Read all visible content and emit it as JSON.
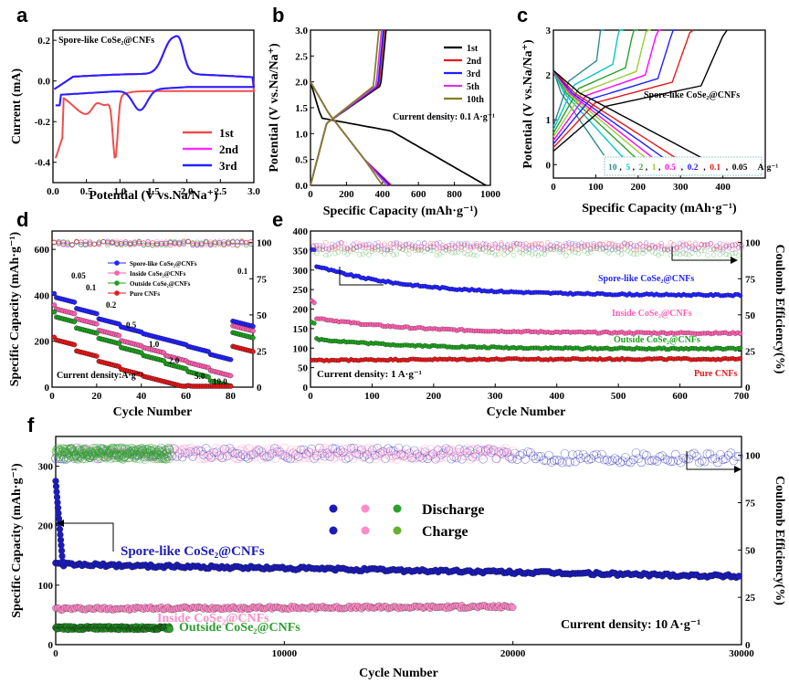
{
  "chart_data": [
    {
      "id": "a",
      "type": "line",
      "panel_label": "a",
      "title": "Spore-like CoSe₂@CNFs",
      "xlabel": "Potential (V vs.Na/Na⁺)",
      "ylabel": "Current (mA)",
      "xlim": [
        0.0,
        3.0
      ],
      "ylim": [
        -0.5,
        0.25
      ],
      "xticks": [
        "0.0",
        "0.5",
        "1.0",
        "1.5",
        "2.0",
        "2.5",
        "3.0"
      ],
      "yticks": [
        "0.2",
        "0.0",
        "-0.2",
        "-0.4"
      ],
      "legend_position": "lower-right",
      "series": [
        {
          "name": "1st",
          "color": "#ef4d4d"
        },
        {
          "name": "2nd",
          "color": "#ff2cff"
        },
        {
          "name": "3rd",
          "color": "#2323ff"
        }
      ]
    },
    {
      "id": "b",
      "type": "line",
      "panel_label": "b",
      "xlabel": "Specific Capacity (mAh·g⁻¹)",
      "ylabel": "Potential (V vs.Na/Na⁺)",
      "xlim": [
        0,
        1000
      ],
      "ylim": [
        0.0,
        3.0
      ],
      "xticks": [
        "0",
        "200",
        "400",
        "600",
        "800",
        "1000"
      ],
      "yticks": [
        "0.0",
        "0.5",
        "1.0",
        "1.5",
        "2.0",
        "2.5",
        "3.0"
      ],
      "annotation": "Current density: 0.1 A·g⁻¹",
      "legend_position": "top-right",
      "series": [
        {
          "name": "1st",
          "color": "#000000",
          "discharge_end": 975,
          "charge_end": 420
        },
        {
          "name": "2nd",
          "color": "#e31a1c",
          "discharge_end": 450,
          "charge_end": 410
        },
        {
          "name": "3rd",
          "color": "#1f1fff",
          "discharge_end": 440,
          "charge_end": 405
        },
        {
          "name": "5th",
          "color": "#d63ad6",
          "discharge_end": 425,
          "charge_end": 395
        },
        {
          "name": "10th",
          "color": "#808020",
          "discharge_end": 400,
          "charge_end": 380
        }
      ]
    },
    {
      "id": "c",
      "type": "line",
      "panel_label": "c",
      "xlabel": "Specific Capacity (mAh·g⁻¹)",
      "ylabel": "Potential (V vs.Na/Na⁺)",
      "xlim": [
        0,
        500
      ],
      "ylim": [
        -0.3,
        3.0
      ],
      "xticks": [
        "0",
        "100",
        "200",
        "300",
        "400"
      ],
      "yticks": [
        "0",
        "1",
        "2",
        "3"
      ],
      "annotation": "Spore-like CoSe₂@CNFs",
      "rates_label_unit": "A·g⁻¹",
      "series": [
        {
          "name": "10",
          "color": "#2e8b8b",
          "capacity": 120
        },
        {
          "name": "5",
          "color": "#00c8c8",
          "capacity": 165
        },
        {
          "name": "2",
          "color": "#2ca02c",
          "capacity": 200
        },
        {
          "name": "1",
          "color": "#9acd32",
          "capacity": 230
        },
        {
          "name": "0.5",
          "color": "#ff00ff",
          "capacity": 255
        },
        {
          "name": "0.2",
          "color": "#1f1fff",
          "capacity": 290
        },
        {
          "name": "0.1",
          "color": "#e31a1c",
          "capacity": 330
        },
        {
          "name": "0.05",
          "color": "#000000",
          "capacity": 410
        }
      ]
    },
    {
      "id": "d",
      "type": "scatter",
      "panel_label": "d",
      "xlabel": "Cycle Number",
      "ylabel": "Specific Capacity (mAh·g⁻¹)",
      "y2label": "",
      "xlim": [
        0,
        90
      ],
      "ylim": [
        0,
        680
      ],
      "y2lim": [
        0,
        108
      ],
      "xticks": [
        "0",
        "20",
        "40",
        "60",
        "80"
      ],
      "yticks": [
        "0",
        "200",
        "400",
        "600"
      ],
      "y2ticks": [
        "0",
        "25",
        "50",
        "75",
        "100"
      ],
      "annotation": "Current density:A·g⁻¹",
      "rate_labels": [
        "0.05",
        "0.1",
        "0.2",
        "0.5",
        "1.0",
        "2.0",
        "5.0",
        "10.0",
        "0.1"
      ],
      "segments": [
        0,
        10,
        20,
        30,
        40,
        50,
        60,
        70,
        80,
        90
      ],
      "series": [
        {
          "name": "Spore-like CoSe₂@CNFs",
          "color": "#2323ff",
          "levels": [
            395,
            345,
            300,
            265,
            235,
            210,
            180,
            145,
            290
          ],
          "first": 410
        },
        {
          "name": "Inside CoSe₂@CNFs",
          "color": "#ff5fb0",
          "levels": [
            345,
            300,
            250,
            205,
            175,
            140,
            110,
            75,
            270
          ],
          "first": 360
        },
        {
          "name": "Outside CoSe₂@CNFs",
          "color": "#1fa01f",
          "levels": [
            310,
            260,
            215,
            175,
            140,
            105,
            70,
            30,
            240
          ],
          "first": 330
        },
        {
          "name": "Pure CNFs",
          "color": "#e31a1c",
          "levels": [
            210,
            160,
            115,
            80,
            50,
            25,
            10,
            5,
            180
          ],
          "first": 220
        }
      ]
    },
    {
      "id": "e",
      "type": "scatter",
      "panel_label": "e",
      "xlabel": "Cycle Number",
      "ylabel": "",
      "y2label": "Coulomb Efficiency(%)",
      "xlim": [
        0,
        700
      ],
      "ylim": [
        0,
        400
      ],
      "y2lim": [
        0,
        108
      ],
      "xticks": [
        "0",
        "100",
        "200",
        "300",
        "400",
        "500",
        "600",
        "700"
      ],
      "yticks": [
        "0",
        "50",
        "100",
        "150",
        "200",
        "250",
        "300",
        "350",
        "400"
      ],
      "y2ticks": [
        "0",
        "25",
        "50",
        "75",
        "100"
      ],
      "annotation": "Current density: 1 A·g⁻¹",
      "series": [
        {
          "name": "Spore-like CoSe₂@CNFs",
          "color": "#2323ff",
          "start": 315,
          "end": 235
        },
        {
          "name": "Inside CoSe₂@CNFs",
          "color": "#ff5fb0",
          "start": 180,
          "end": 138
        },
        {
          "name": "Outside CoSe₂@CNFs",
          "color": "#1fa01f",
          "start": 125,
          "end": 98
        },
        {
          "name": "Pure CNFs",
          "color": "#e31a1c",
          "start": 68,
          "end": 72
        }
      ]
    },
    {
      "id": "f",
      "type": "scatter",
      "panel_label": "f",
      "xlabel": "Cycle Number",
      "ylabel": "Specific Capacity (mAh·g⁻¹)",
      "y2label": "Coulomb Efficiency(%)",
      "xlim": [
        0,
        30000
      ],
      "ylim": [
        0,
        350
      ],
      "y2lim": [
        0,
        110
      ],
      "xticks": [
        "0",
        "10000",
        "20000",
        "30000"
      ],
      "yticks": [
        "0",
        "100",
        "200",
        "300"
      ],
      "y2ticks": [
        "0",
        "25",
        "50",
        "75",
        "100"
      ],
      "annotation": "Current density: 10 A·g⁻¹",
      "legend": {
        "discharge": "Discharge",
        "charge": "Charge"
      },
      "series": [
        {
          "name": "Spore-like CoSe₂@CNFs",
          "color": "#1c1cb4",
          "capacity": [
            135,
            115
          ],
          "max_cycle": 30000
        },
        {
          "name": "Inside CoSe₂@CNFs",
          "color": "#ff8cc8",
          "capacity": [
            60,
            64
          ],
          "max_cycle": 20000
        },
        {
          "name": "Outside CoSe₂@CNFs",
          "color": "#2ca02c",
          "capacity": [
            28,
            28
          ],
          "max_cycle": 5000
        }
      ]
    }
  ]
}
